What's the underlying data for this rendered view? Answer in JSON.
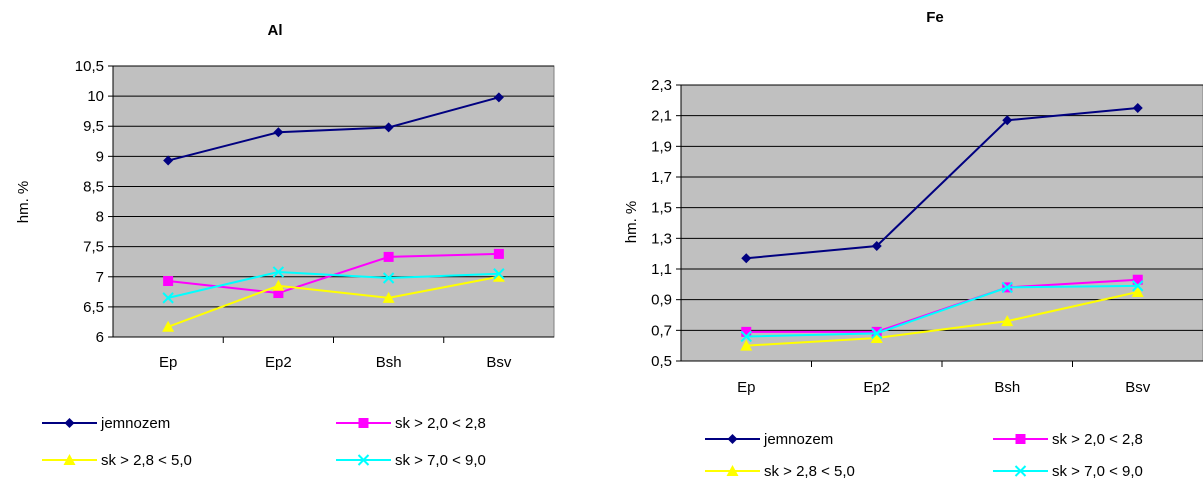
{
  "chart_data": [
    {
      "type": "line",
      "title": "Al",
      "xlabel": "",
      "ylabel": "hm. %",
      "categories": [
        "Ep",
        "Ep2",
        "Bsh",
        "Bsv"
      ],
      "ylim": [
        6,
        10.5
      ],
      "ytick_step": 0.5,
      "y_ticks": [
        "6",
        "6,5",
        "7",
        "7,5",
        "8",
        "8,5",
        "9",
        "9,5",
        "10",
        "10,5"
      ],
      "grid": true,
      "legend_position": "bottom",
      "plot_background": "#c0c0c0",
      "series": [
        {
          "name": "jemnozem",
          "color": "#000080",
          "marker": "diamond",
          "values": [
            8.93,
            9.4,
            9.48,
            9.98
          ]
        },
        {
          "name": "sk > 2,0 < 2,8",
          "color": "#ff00ff",
          "marker": "square",
          "values": [
            6.93,
            6.73,
            7.33,
            7.38
          ]
        },
        {
          "name": "sk > 2,8 < 5,0",
          "color": "#ffff00",
          "marker": "triangle",
          "values": [
            6.17,
            6.85,
            6.65,
            7.0
          ]
        },
        {
          "name": "sk > 7,0 < 9,0",
          "color": "#00ffff",
          "marker": "x",
          "values": [
            6.65,
            7.08,
            6.98,
            7.05
          ]
        }
      ]
    },
    {
      "type": "line",
      "title": "Fe",
      "xlabel": "",
      "ylabel": "hm. %",
      "categories": [
        "Ep",
        "Ep2",
        "Bsh",
        "Bsv"
      ],
      "ylim": [
        0.5,
        2.3
      ],
      "ytick_step": 0.2,
      "y_ticks": [
        "0,5",
        "0,7",
        "0,9",
        "1,1",
        "1,3",
        "1,5",
        "1,7",
        "1,9",
        "2,1",
        "2,3"
      ],
      "grid": true,
      "legend_position": "bottom",
      "plot_background": "#c0c0c0",
      "series": [
        {
          "name": "jemnozem",
          "color": "#000080",
          "marker": "diamond",
          "values": [
            1.17,
            1.25,
            2.07,
            2.15
          ]
        },
        {
          "name": "sk > 2,0 < 2,8",
          "color": "#ff00ff",
          "marker": "square",
          "values": [
            0.69,
            0.69,
            0.98,
            1.03
          ]
        },
        {
          "name": "sk > 2,8 < 5,0",
          "color": "#ffff00",
          "marker": "triangle",
          "values": [
            0.6,
            0.65,
            0.76,
            0.95
          ]
        },
        {
          "name": "sk > 7,0 < 9,0",
          "color": "#00ffff",
          "marker": "x",
          "values": [
            0.66,
            0.68,
            0.98,
            0.99
          ]
        }
      ]
    }
  ]
}
